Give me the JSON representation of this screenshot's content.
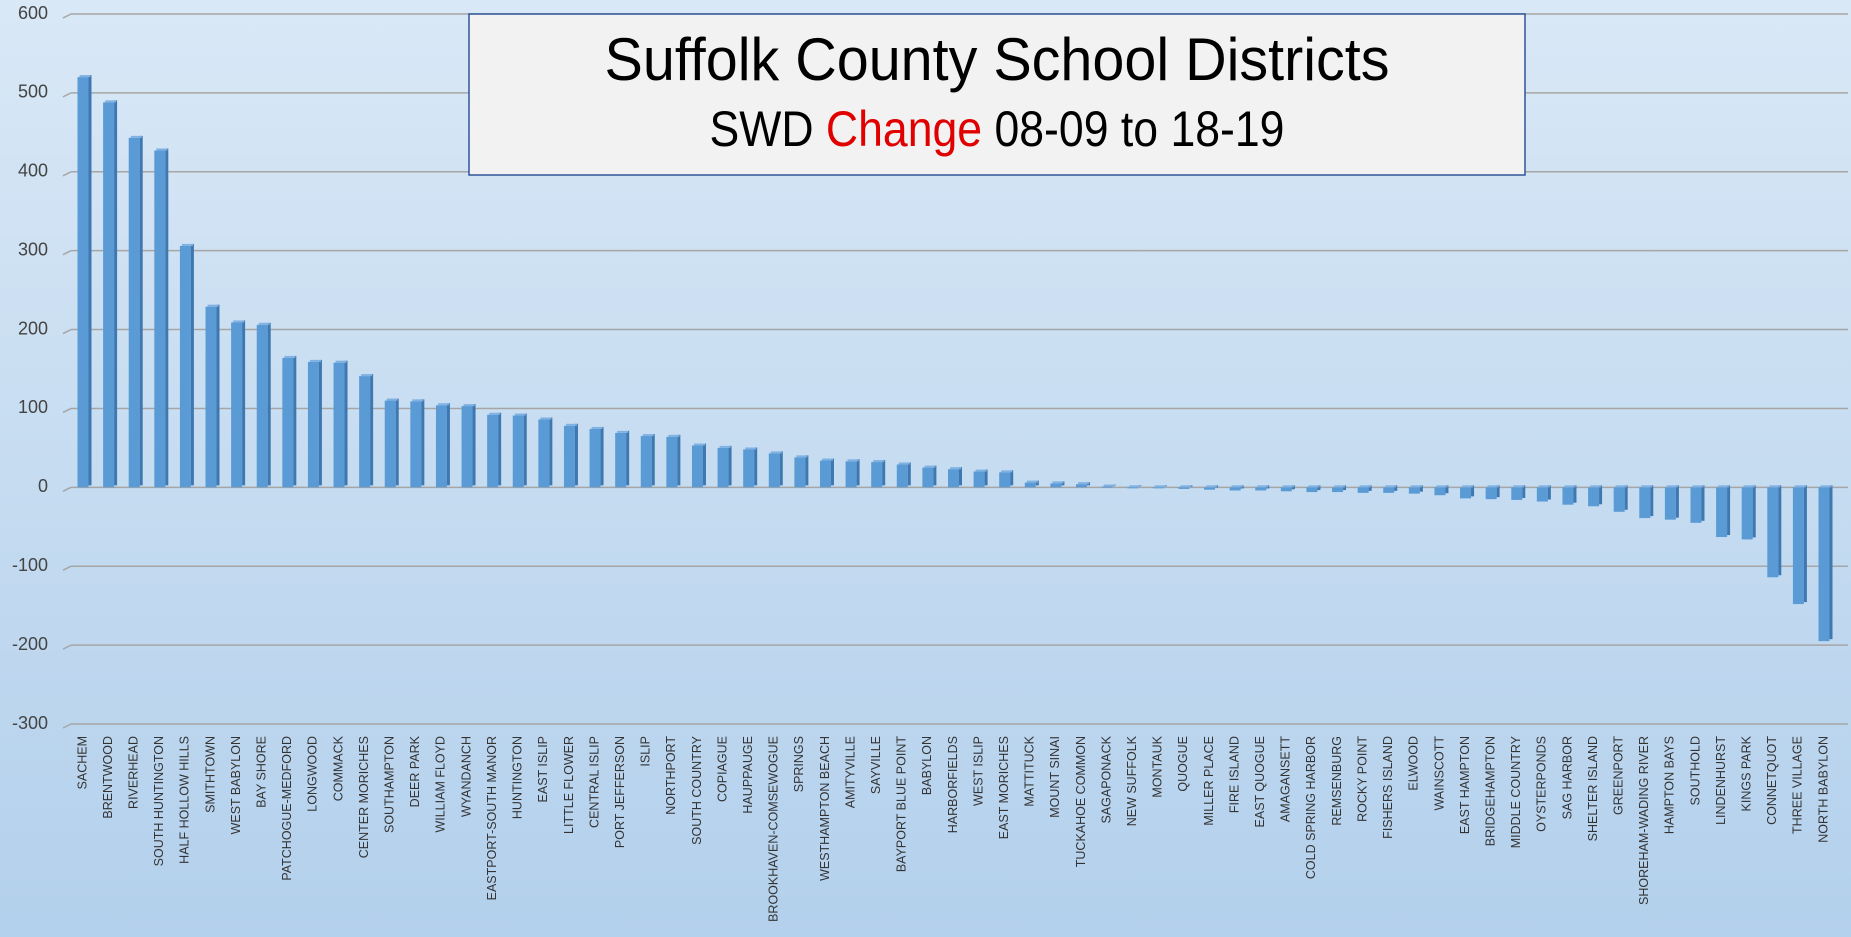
{
  "chart_data": {
    "type": "bar",
    "title": "Suffolk County School Districts",
    "subtitle": [
      "SWD ",
      "Change",
      " 08-09 to 18-19"
    ],
    "categories": [
      "SACHEM",
      "BRENTWOOD",
      "RIVERHEAD",
      "SOUTH HUNTINGTON",
      "HALF HOLLOW HILLS",
      "SMITHTOWN",
      "WEST BABYLON",
      "BAY SHORE",
      "PATCHOGUE-MEDFORD",
      "LONGWOOD",
      "COMMACK",
      "CENTER MORICHES",
      "SOUTHAMPTON",
      "DEER PARK",
      "WILLIAM FLOYD",
      "WYANDANCH",
      "EASTPORT-SOUTH MANOR",
      "HUNTINGTON",
      "EAST ISLIP",
      "LITTLE FLOWER",
      "CENTRAL ISLIP",
      "PORT JEFFERSON",
      "ISLIP",
      "NORTHPORT",
      "SOUTH COUNTRY",
      "COPIAGUE",
      "HAUPPAUGE",
      "BROOKHAVEN-COMSEWOGUE",
      "SPRINGS",
      "WESTHAMPTON BEACH",
      "AMITYVILLE",
      "SAYVILLE",
      "BAYPORT BLUE POINT",
      "BABYLON",
      "HARBORFIELDS",
      "WEST ISLIP",
      "EAST MORICHES",
      "MATTITUCK",
      "MOUNT SINAI",
      "TUCKAHOE COMMON",
      "SAGAPONACK",
      "NEW SUFFOLK",
      "MONTAUK",
      "QUOGUE",
      "MILLER PLACE",
      "FIRE ISLAND",
      "EAST QUOGUE",
      "AMAGANSETT",
      "COLD SPRING HARBOR",
      "REMSENBURG",
      "ROCKY POINT",
      "FISHERS ISLAND",
      "ELWOOD",
      "WAINSCOTT",
      "EAST HAMPTON",
      "BRIDGEHAMPTON",
      "MIDDLE COUNTRY",
      "OYSTERPONDS",
      "SAG HARBOR",
      "SHELTER ISLAND",
      "GREENPORT",
      "SHOREHAM-WADING RIVER",
      "HAMPTON BAYS",
      "SOUTHOLD",
      "LINDENHURST",
      "KINGS PARK",
      "CONNETQUOT",
      "THREE VILLAGE",
      "NORTH BABYLON"
    ],
    "values": [
      520,
      488,
      443,
      427,
      306,
      229,
      209,
      206,
      164,
      159,
      158,
      141,
      110,
      109,
      104,
      103,
      92,
      91,
      86,
      78,
      74,
      69,
      65,
      64,
      53,
      50,
      48,
      43,
      38,
      34,
      33,
      32,
      29,
      25,
      23,
      20,
      19,
      6,
      5,
      4,
      1,
      0,
      -1,
      -2,
      -3,
      -4,
      -4,
      -5,
      -6,
      -6,
      -7,
      -7,
      -8,
      -10,
      -14,
      -15,
      -16,
      -18,
      -22,
      -24,
      -31,
      -39,
      -41,
      -45,
      -63,
      -66,
      -114,
      -148,
      -195
    ],
    "color": "#5b9bd5",
    "ylim": [
      -300,
      600
    ],
    "yticks": [
      -300,
      -200,
      -100,
      0,
      100,
      200,
      300,
      400,
      500,
      600
    ],
    "grid": true
  }
}
